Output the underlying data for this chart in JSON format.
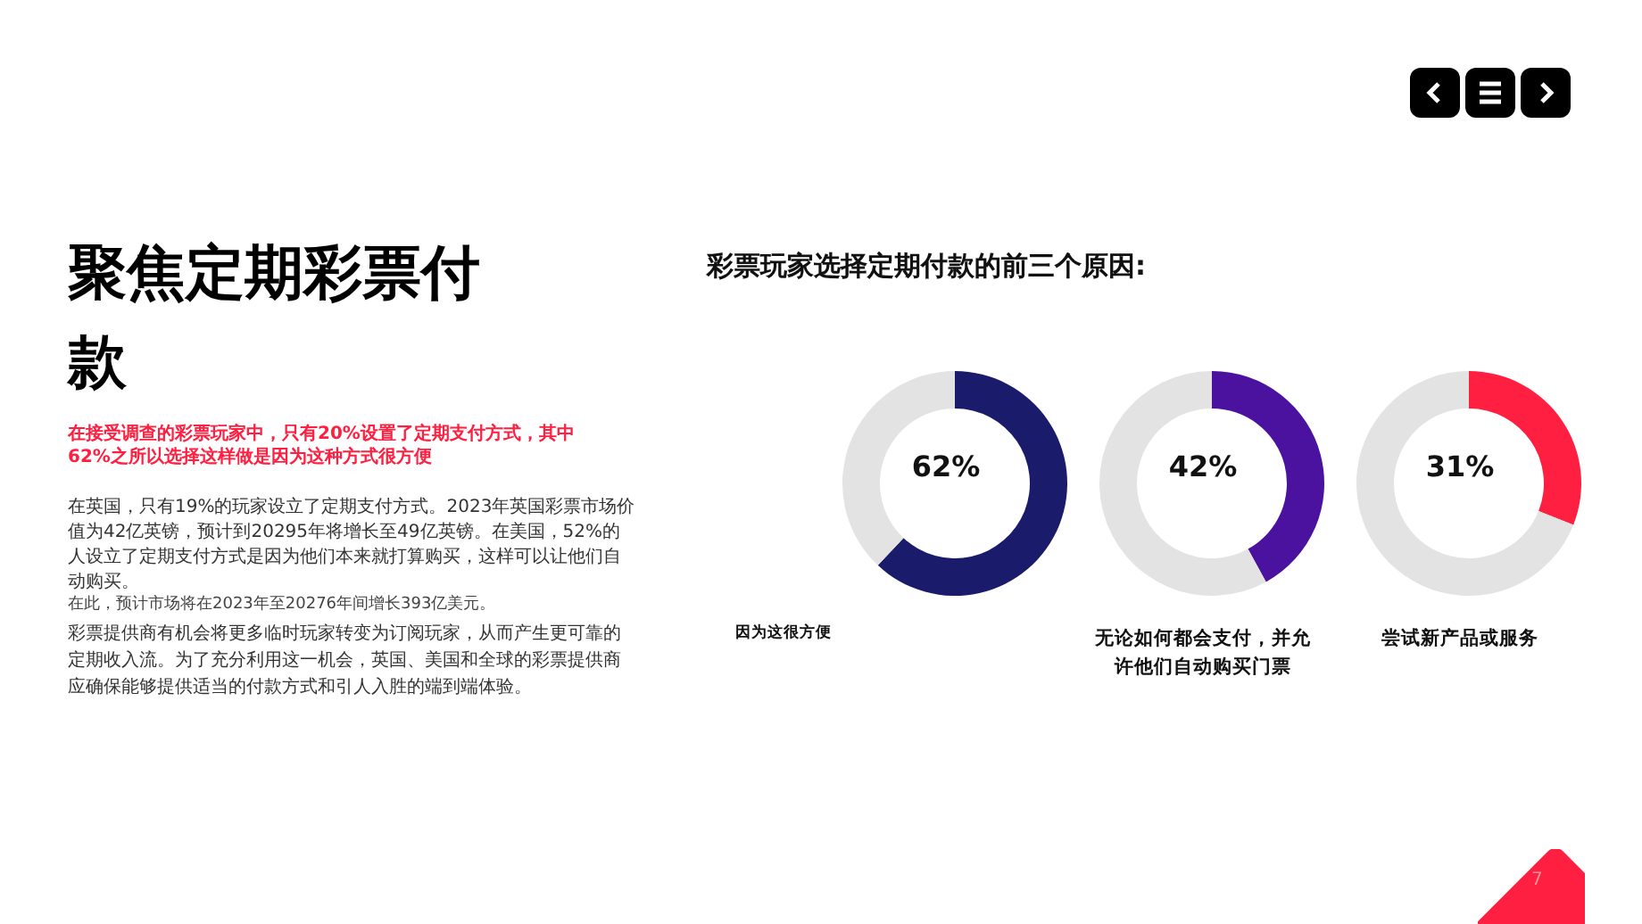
{
  "chart_data": [
    {
      "type": "other",
      "title": "聚焦定期彩票付款",
      "subtitle": "在接受调查的彩票玩家中，只有20%设置了定期支付方式，其中62%之所以选择这样做是因为这种方式很方便",
      "annotations": [
        "在英国，只有19%的玩家设立了定期支付方式。2023年英国彩票市场价值为42亿英镑，预计到20295年将增长至49亿英镑。在美国，52%的人设立了定期支付方式是因为他们本来就打算购买，这样可以让他们自动购买。",
        "在此，预计市场将在2023年至20276年间增长393亿美元。",
        "彩票提供商有机会将更多临时玩家转变为订阅玩家，从而产生更可靠的定期收入流。为了充分利用这一机会，英国、美国和全球的彩票提供商应确保能够提供适当的付款方式和引人入胜的端到端体验。",
        "7"
      ]
    },
    {
      "type": "donut",
      "subtitle": "彩票玩家选择定期付款的前三个原因:",
      "title": "因为这很方便",
      "categories": [
        null,
        null
      ],
      "values": [
        62,
        38
      ],
      "colors": [
        "#1b1b6b",
        "#e3e3e3"
      ],
      "annotations": [
        "62%"
      ]
    },
    {
      "type": "donut",
      "title": "无论如何都会支付，并允许他们自动购买门票",
      "categories": [
        null,
        null
      ],
      "values": [
        42,
        58
      ],
      "colors": [
        "#4b12a0",
        "#e3e3e3"
      ],
      "annotations": [
        "42%"
      ]
    },
    {
      "type": "donut",
      "title": "尝试新产品或服务",
      "categories": [
        null,
        null
      ],
      "values": [
        31,
        69
      ],
      "colors": [
        "#ff1f40",
        "#e3e3e3"
      ],
      "annotations": [
        "31%"
      ]
    }
  ]
}
